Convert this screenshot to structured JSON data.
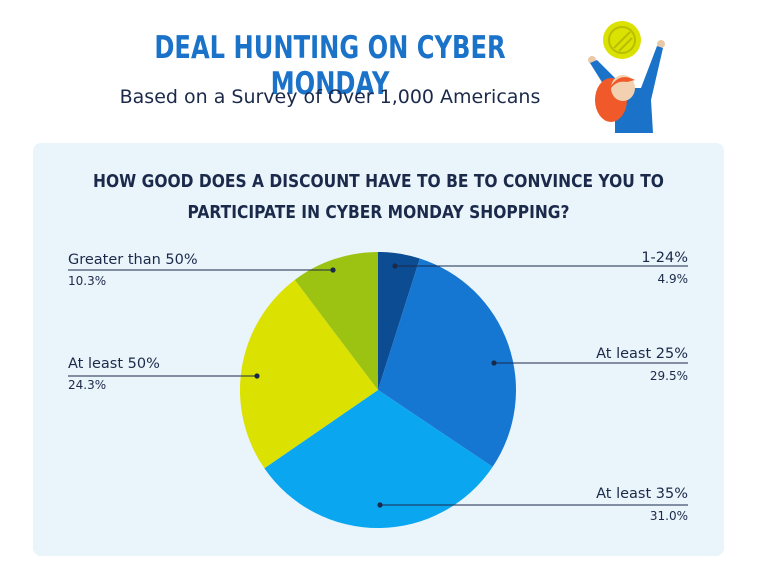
{
  "header": {
    "title": "DEAL HUNTING ON CYBER MONDAY",
    "subtitle": "Based on a Survey of Over 1,000 Americans"
  },
  "colors": {
    "title": "#1a72c9",
    "panel_bg": "#eaf4fb",
    "text": "#1b2a4a"
  },
  "chart_data": {
    "type": "pie",
    "title_lines": [
      "HOW GOOD DOES A DISCOUNT HAVE TO BE TO CONVINCE YOU TO",
      "PARTICIPATE IN CYBER MONDAY SHOPPING?"
    ],
    "slices": [
      {
        "label": "1-24%",
        "value": 4.9,
        "display": "4.9%",
        "color": "#0b4c93"
      },
      {
        "label": "At least 25%",
        "value": 29.5,
        "display": "29.5%",
        "color": "#1677d2"
      },
      {
        "label": "At least 35%",
        "value": 31.0,
        "display": "31.0%",
        "color": "#0aa6f0"
      },
      {
        "label": "At least 50%",
        "value": 24.3,
        "display": "24.3%",
        "color": "#dbe100"
      },
      {
        "label": "Greater than 50%",
        "value": 10.3,
        "display": "10.3%",
        "color": "#9cc212"
      }
    ],
    "start": "top",
    "direction": "clockwise",
    "legend": "none"
  }
}
